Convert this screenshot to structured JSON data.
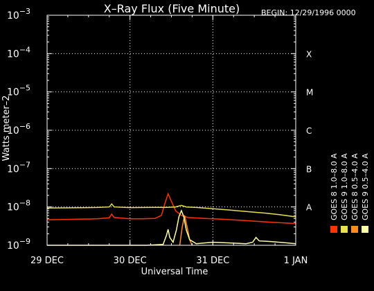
{
  "chart_data": {
    "type": "line",
    "title": "X–Ray Flux (Five Minute)",
    "begin_label": "BEGIN: 12/29/1996 0000",
    "xlabel": "Universal Time",
    "ylabel": "Watts meter–2",
    "x_ticks": [
      "29 DEC",
      "30 DEC",
      "31 DEC",
      "1 JAN"
    ],
    "x_range_days": [
      0,
      3
    ],
    "y_scale": "log",
    "ylim": [
      1e-09,
      0.001
    ],
    "y_ticks": [
      {
        "base": "10",
        "exp": "−9"
      },
      {
        "base": "10",
        "exp": "−8"
      },
      {
        "base": "10",
        "exp": "−7"
      },
      {
        "base": "10",
        "exp": "−6"
      },
      {
        "base": "10",
        "exp": "−5"
      },
      {
        "base": "10",
        "exp": "−4"
      },
      {
        "base": "10",
        "exp": "−3"
      }
    ],
    "flare_classes": [
      {
        "label": "A",
        "value": 1e-08
      },
      {
        "label": "B",
        "value": 1e-07
      },
      {
        "label": "C",
        "value": 1e-06
      },
      {
        "label": "M",
        "value": 1e-05
      },
      {
        "label": "X",
        "value": 0.0001
      }
    ],
    "grid": true,
    "legend_position": "right",
    "series": [
      {
        "name": "GOES 8 1.0–8.0 A",
        "color": "#ff3300",
        "points": [
          [
            0.0,
            4.6e-09
          ],
          [
            0.2,
            4.7e-09
          ],
          [
            0.4,
            4.8e-09
          ],
          [
            0.6,
            4.9e-09
          ],
          [
            0.75,
            5.2e-09
          ],
          [
            0.78,
            6.5e-09
          ],
          [
            0.81,
            5.3e-09
          ],
          [
            1.0,
            4.9e-09
          ],
          [
            1.15,
            4.9e-09
          ],
          [
            1.3,
            5e-09
          ],
          [
            1.38,
            6e-09
          ],
          [
            1.42,
            1.2e-08
          ],
          [
            1.46,
            2.2e-08
          ],
          [
            1.5,
            1.4e-08
          ],
          [
            1.55,
            8e-09
          ],
          [
            1.62,
            6e-09
          ],
          [
            1.7,
            5.3e-09
          ],
          [
            1.9,
            5e-09
          ],
          [
            2.1,
            4.8e-09
          ],
          [
            2.4,
            4.4e-09
          ],
          [
            2.7,
            4e-09
          ],
          [
            3.0,
            3.7e-09
          ]
        ]
      },
      {
        "name": "GOES 9 1.0–8.0 A",
        "color": "#e8e050",
        "points": [
          [
            0.0,
            9.4e-09
          ],
          [
            0.3,
            9.5e-09
          ],
          [
            0.6,
            9.7e-09
          ],
          [
            0.75,
            1e-08
          ],
          [
            0.78,
            1.2e-08
          ],
          [
            0.81,
            1e-08
          ],
          [
            1.0,
            9.6e-09
          ],
          [
            1.3,
            9.8e-09
          ],
          [
            1.45,
            9.8e-09
          ],
          [
            1.55,
            1e-08
          ],
          [
            1.62,
            1.1e-08
          ],
          [
            1.68,
            1e-08
          ],
          [
            1.8,
            9.7e-09
          ],
          [
            2.0,
            9e-09
          ],
          [
            2.2,
            8.3e-09
          ],
          [
            2.4,
            7.6e-09
          ],
          [
            2.6,
            7e-09
          ],
          [
            2.8,
            6.3e-09
          ],
          [
            3.0,
            5.5e-09
          ]
        ]
      },
      {
        "name": "GOES 8 0.5–4.0 A",
        "color": "#ff8c1a",
        "points": [
          [
            1.6,
            1e-09
          ],
          [
            1.63,
            3e-09
          ],
          [
            1.66,
            6e-09
          ],
          [
            1.69,
            3e-09
          ],
          [
            1.72,
            1.4e-09
          ],
          [
            1.75,
            1e-09
          ]
        ]
      },
      {
        "name": "GOES 9 0.5–4.0 A",
        "color": "#ffffaa",
        "points": [
          [
            0.0,
            1e-09
          ],
          [
            0.3,
            1e-09
          ],
          [
            0.6,
            9.6e-10
          ],
          [
            1.0,
            9.8e-10
          ],
          [
            1.2,
            1e-09
          ],
          [
            1.4,
            1.05e-09
          ],
          [
            1.44,
            1.8e-09
          ],
          [
            1.46,
            2.6e-09
          ],
          [
            1.48,
            1.6e-09
          ],
          [
            1.52,
            1.2e-09
          ],
          [
            1.56,
            2.5e-09
          ],
          [
            1.59,
            5.5e-09
          ],
          [
            1.62,
            8e-09
          ],
          [
            1.65,
            5.5e-09
          ],
          [
            1.68,
            2.5e-09
          ],
          [
            1.72,
            1.4e-09
          ],
          [
            1.8,
            1.1e-09
          ],
          [
            1.9,
            1.15e-09
          ],
          [
            2.0,
            1.2e-09
          ],
          [
            2.2,
            1.15e-09
          ],
          [
            2.4,
            1.1e-09
          ],
          [
            2.48,
            1.2e-09
          ],
          [
            2.52,
            1.6e-09
          ],
          [
            2.56,
            1.3e-09
          ],
          [
            2.7,
            1.25e-09
          ],
          [
            2.8,
            1.2e-09
          ],
          [
            2.9,
            1.15e-09
          ],
          [
            3.0,
            1.1e-09
          ]
        ]
      }
    ]
  }
}
